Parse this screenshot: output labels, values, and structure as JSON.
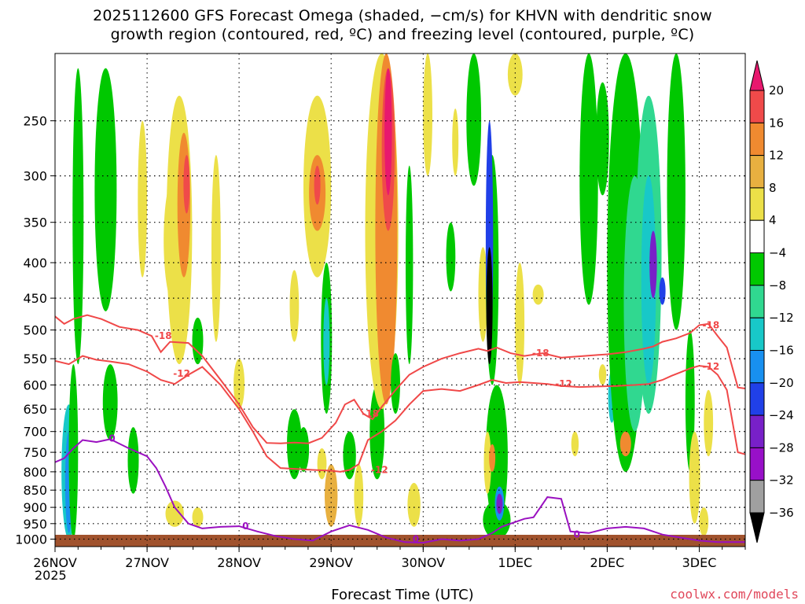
{
  "chart_data": {
    "type": "heatmap",
    "title_line1": "2025112600 GFS Forecast Omega (shaded, −cm/s) for KHVN with dendritic snow",
    "title_line2": "growth region (contoured, red, ºC) and freezing level (contoured, purple, ºC)",
    "xlabel": "Forecast Time (UTC)",
    "x_ticks": [
      "26NOV",
      "27NOV",
      "28NOV",
      "29NOV",
      "30NOV",
      "1DEC",
      "2DEC",
      "3DEC"
    ],
    "x_year": "2025",
    "x_range_days": [
      0,
      7.5
    ],
    "y_ticks": [
      250,
      300,
      350,
      400,
      450,
      500,
      550,
      600,
      650,
      700,
      750,
      800,
      850,
      900,
      950,
      1000
    ],
    "y_range_hpa": [
      200,
      1025
    ],
    "colorbar_labels": [
      "20",
      "16",
      "12",
      "8",
      "4",
      "−4",
      "−8",
      "−12",
      "−16",
      "−20",
      "−24",
      "−28",
      "−32",
      "−36"
    ],
    "colorbar_colors": [
      "#e8186e",
      "#f04a4a",
      "#f08a30",
      "#e8b040",
      "#ece048",
      "#ffffff",
      "#00c800",
      "#30d890",
      "#18c8c8",
      "#1890f0",
      "#2040e8",
      "#7820c8",
      "#9810c8",
      "#a0a0a0",
      "#000000"
    ],
    "series": [
      {
        "name": "-18",
        "color": "#f04848",
        "x": [
          0,
          0.1,
          0.2,
          0.35,
          0.5,
          0.7,
          0.9,
          1.05,
          1.15,
          1.25,
          1.45,
          1.6,
          1.8,
          2.0,
          2.15,
          2.3,
          2.45,
          2.6,
          2.75,
          2.9,
          3.05,
          3.15,
          3.25,
          3.35,
          3.45,
          3.55,
          3.7,
          3.85,
          4.0,
          4.2,
          4.4,
          4.6,
          4.7,
          4.8,
          4.95,
          5.1,
          5.3,
          5.5,
          5.75,
          6.0,
          6.2,
          6.4,
          6.5,
          6.6,
          6.75,
          6.9,
          7.0,
          7.1,
          7.2,
          7.3,
          7.42,
          7.5
        ],
        "y": [
          478,
          490,
          482,
          476,
          482,
          495,
          500,
          510,
          538,
          520,
          522,
          545,
          590,
          640,
          690,
          727,
          728,
          726,
          728,
          715,
          680,
          640,
          630,
          660,
          672,
          645,
          610,
          580,
          565,
          550,
          540,
          532,
          536,
          530,
          540,
          545,
          540,
          548,
          545,
          542,
          538,
          532,
          528,
          520,
          514,
          505,
          492,
          490,
          510,
          530,
          605,
          607
        ]
      },
      {
        "name": "-12",
        "color": "#f04848",
        "x": [
          0,
          0.15,
          0.3,
          0.45,
          0.6,
          0.8,
          1.0,
          1.15,
          1.3,
          1.45,
          1.6,
          1.8,
          2.0,
          2.15,
          2.3,
          2.45,
          2.6,
          2.8,
          3.0,
          3.1,
          3.2,
          3.3,
          3.4,
          3.55,
          3.7,
          3.85,
          4.0,
          4.2,
          4.4,
          4.6,
          4.75,
          4.9,
          5.05,
          5.2,
          5.35,
          5.5,
          5.7,
          5.9,
          6.1,
          6.3,
          6.45,
          6.6,
          6.7,
          6.8,
          6.9,
          7.0,
          7.1,
          7.2,
          7.3,
          7.42,
          7.5
        ],
        "y": [
          554,
          560,
          545,
          552,
          555,
          560,
          574,
          590,
          598,
          580,
          565,
          600,
          650,
          700,
          760,
          790,
          792,
          795,
          797,
          800,
          795,
          780,
          720,
          700,
          675,
          640,
          612,
          608,
          612,
          600,
          590,
          596,
          594,
          596,
          598,
          602,
          604,
          603,
          602,
          600,
          598,
          590,
          582,
          575,
          568,
          563,
          565,
          580,
          610,
          750,
          755
        ]
      },
      {
        "name": "0",
        "color": "#9a10c0",
        "x": [
          0,
          0.1,
          0.2,
          0.3,
          0.45,
          0.6,
          0.8,
          1.0,
          1.1,
          1.2,
          1.3,
          1.45,
          1.6,
          1.8,
          2.0,
          2.2,
          2.4,
          2.6,
          2.8,
          3.0,
          3.2,
          3.4,
          3.6,
          3.8,
          4.0,
          4.2,
          4.4,
          4.6,
          4.75,
          4.85,
          5.0,
          5.1,
          5.2,
          5.35,
          5.5,
          5.6,
          5.8,
          6.0,
          6.2,
          6.4,
          6.6,
          6.8,
          7.0,
          7.2,
          7.4,
          7.5
        ],
        "y": [
          775,
          765,
          740,
          720,
          725,
          718,
          740,
          760,
          790,
          840,
          900,
          950,
          965,
          960,
          958,
          975,
          990,
          1000,
          1005,
          975,
          955,
          970,
          995,
          1010,
          1012,
          1000,
          1005,
          1000,
          980,
          960,
          945,
          935,
          930,
          870,
          875,
          975,
          980,
          965,
          960,
          965,
          985,
          995,
          1005,
          1010,
          1010,
          1010
        ]
      }
    ]
  }
}
